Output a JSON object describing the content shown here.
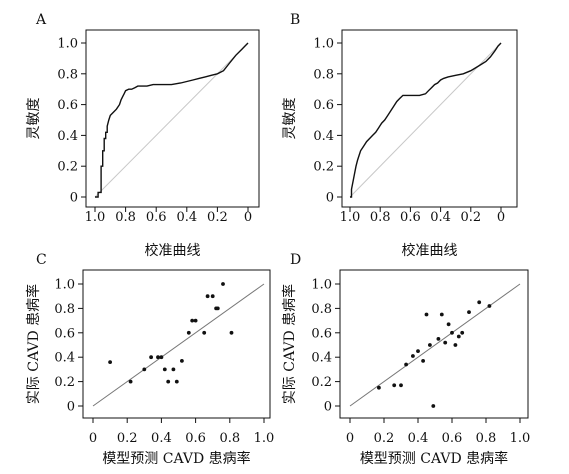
{
  "chart_data": [
    {
      "panel": "A",
      "type": "line",
      "xlabel": "校准曲线",
      "ylabel": "灵敏度",
      "xlim": [
        1.0,
        0.0
      ],
      "ylim": [
        0.0,
        1.0
      ],
      "x_ticks": [
        "1.0",
        "0.8",
        "0.6",
        "0.4",
        "0.2",
        "0"
      ],
      "y_ticks": [
        "0",
        "0.2",
        "0.4",
        "0.6",
        "0.8",
        "1.0"
      ],
      "reference_line": "diagonal",
      "series": [
        {
          "x": [
            1.0,
            0.98,
            0.98,
            0.96,
            0.96,
            0.95,
            0.95,
            0.94,
            0.94,
            0.93,
            0.93,
            0.92,
            0.92,
            0.91,
            0.9,
            0.88,
            0.86,
            0.84,
            0.83,
            0.82,
            0.81,
            0.8,
            0.78,
            0.76,
            0.74,
            0.72,
            0.7,
            0.66,
            0.62,
            0.58,
            0.5,
            0.44,
            0.4,
            0.36,
            0.32,
            0.28,
            0.24,
            0.2,
            0.16,
            0.12,
            0.08,
            0.04,
            0.02,
            0.0
          ],
          "y": [
            0.0,
            0.0,
            0.03,
            0.03,
            0.2,
            0.2,
            0.3,
            0.3,
            0.38,
            0.38,
            0.42,
            0.42,
            0.46,
            0.5,
            0.53,
            0.55,
            0.57,
            0.6,
            0.63,
            0.65,
            0.67,
            0.69,
            0.7,
            0.7,
            0.71,
            0.72,
            0.72,
            0.72,
            0.73,
            0.73,
            0.73,
            0.74,
            0.75,
            0.76,
            0.77,
            0.78,
            0.79,
            0.8,
            0.82,
            0.87,
            0.92,
            0.96,
            0.98,
            1.0
          ]
        }
      ]
    },
    {
      "panel": "B",
      "type": "line",
      "xlabel": "校准曲线",
      "ylabel": "灵敏度",
      "xlim": [
        1.0,
        0.0
      ],
      "ylim": [
        0.0,
        1.0
      ],
      "x_ticks": [
        "1.0",
        "0.8",
        "0.6",
        "0.4",
        "0.2",
        "0"
      ],
      "y_ticks": [
        "0",
        "0.2",
        "0.4",
        "0.6",
        "0.8",
        "1.0"
      ],
      "reference_line": "diagonal",
      "series": [
        {
          "x": [
            1.0,
            0.99,
            0.99,
            0.98,
            0.97,
            0.96,
            0.95,
            0.94,
            0.93,
            0.91,
            0.89,
            0.87,
            0.85,
            0.83,
            0.81,
            0.79,
            0.77,
            0.75,
            0.73,
            0.71,
            0.69,
            0.67,
            0.65,
            0.62,
            0.58,
            0.54,
            0.5,
            0.48,
            0.46,
            0.44,
            0.42,
            0.4,
            0.38,
            0.35,
            0.3,
            0.25,
            0.2,
            0.15,
            0.1,
            0.07,
            0.04,
            0.02,
            0.0
          ],
          "y": [
            0.0,
            0.0,
            0.05,
            0.1,
            0.15,
            0.2,
            0.24,
            0.27,
            0.3,
            0.33,
            0.36,
            0.38,
            0.4,
            0.42,
            0.45,
            0.48,
            0.5,
            0.53,
            0.56,
            0.59,
            0.62,
            0.64,
            0.66,
            0.66,
            0.66,
            0.66,
            0.67,
            0.69,
            0.71,
            0.73,
            0.74,
            0.76,
            0.77,
            0.78,
            0.79,
            0.8,
            0.82,
            0.85,
            0.88,
            0.91,
            0.95,
            0.98,
            1.0
          ]
        }
      ]
    },
    {
      "panel": "C",
      "type": "scatter",
      "xlabel": "模型预测 CAVD 患病率",
      "ylabel": "实际 CAVD 患病率",
      "xlim": [
        0.0,
        1.0
      ],
      "ylim": [
        0.0,
        1.0
      ],
      "x_ticks": [
        "0",
        "0.2",
        "0.4",
        "0.6",
        "0.8",
        "1.0"
      ],
      "y_ticks": [
        "0",
        "0.2",
        "0.4",
        "0.6",
        "0.8",
        "1.0"
      ],
      "reference_line": "diagonal",
      "points": [
        [
          0.1,
          0.36
        ],
        [
          0.22,
          0.2
        ],
        [
          0.3,
          0.3
        ],
        [
          0.34,
          0.4
        ],
        [
          0.38,
          0.4
        ],
        [
          0.4,
          0.4
        ],
        [
          0.42,
          0.3
        ],
        [
          0.44,
          0.2
        ],
        [
          0.47,
          0.3
        ],
        [
          0.49,
          0.2
        ],
        [
          0.52,
          0.37
        ],
        [
          0.56,
          0.6
        ],
        [
          0.58,
          0.7
        ],
        [
          0.6,
          0.7
        ],
        [
          0.65,
          0.6
        ],
        [
          0.67,
          0.9
        ],
        [
          0.7,
          0.9
        ],
        [
          0.72,
          0.8
        ],
        [
          0.73,
          0.8
        ],
        [
          0.76,
          1.0
        ],
        [
          0.81,
          0.6
        ]
      ]
    },
    {
      "panel": "D",
      "type": "scatter",
      "xlabel": "模型预测 CAVD 患病率",
      "ylabel": "实际 CAVD 患病率",
      "xlim": [
        0.0,
        1.0
      ],
      "ylim": [
        0.0,
        1.0
      ],
      "x_ticks": [
        "0",
        "0.2",
        "0.4",
        "0.6",
        "0.8",
        "1.0"
      ],
      "y_ticks": [
        "0",
        "0.2",
        "0.4",
        "0.6",
        "0.8",
        "1.0"
      ],
      "reference_line": "diagonal",
      "points": [
        [
          0.17,
          0.15
        ],
        [
          0.26,
          0.17
        ],
        [
          0.3,
          0.17
        ],
        [
          0.33,
          0.34
        ],
        [
          0.37,
          0.41
        ],
        [
          0.4,
          0.45
        ],
        [
          0.43,
          0.37
        ],
        [
          0.45,
          0.75
        ],
        [
          0.47,
          0.5
        ],
        [
          0.49,
          0.0
        ],
        [
          0.52,
          0.55
        ],
        [
          0.54,
          0.75
        ],
        [
          0.56,
          0.52
        ],
        [
          0.58,
          0.67
        ],
        [
          0.6,
          0.6
        ],
        [
          0.62,
          0.5
        ],
        [
          0.64,
          0.57
        ],
        [
          0.66,
          0.6
        ],
        [
          0.7,
          0.77
        ],
        [
          0.76,
          0.85
        ],
        [
          0.82,
          0.82
        ]
      ]
    }
  ]
}
